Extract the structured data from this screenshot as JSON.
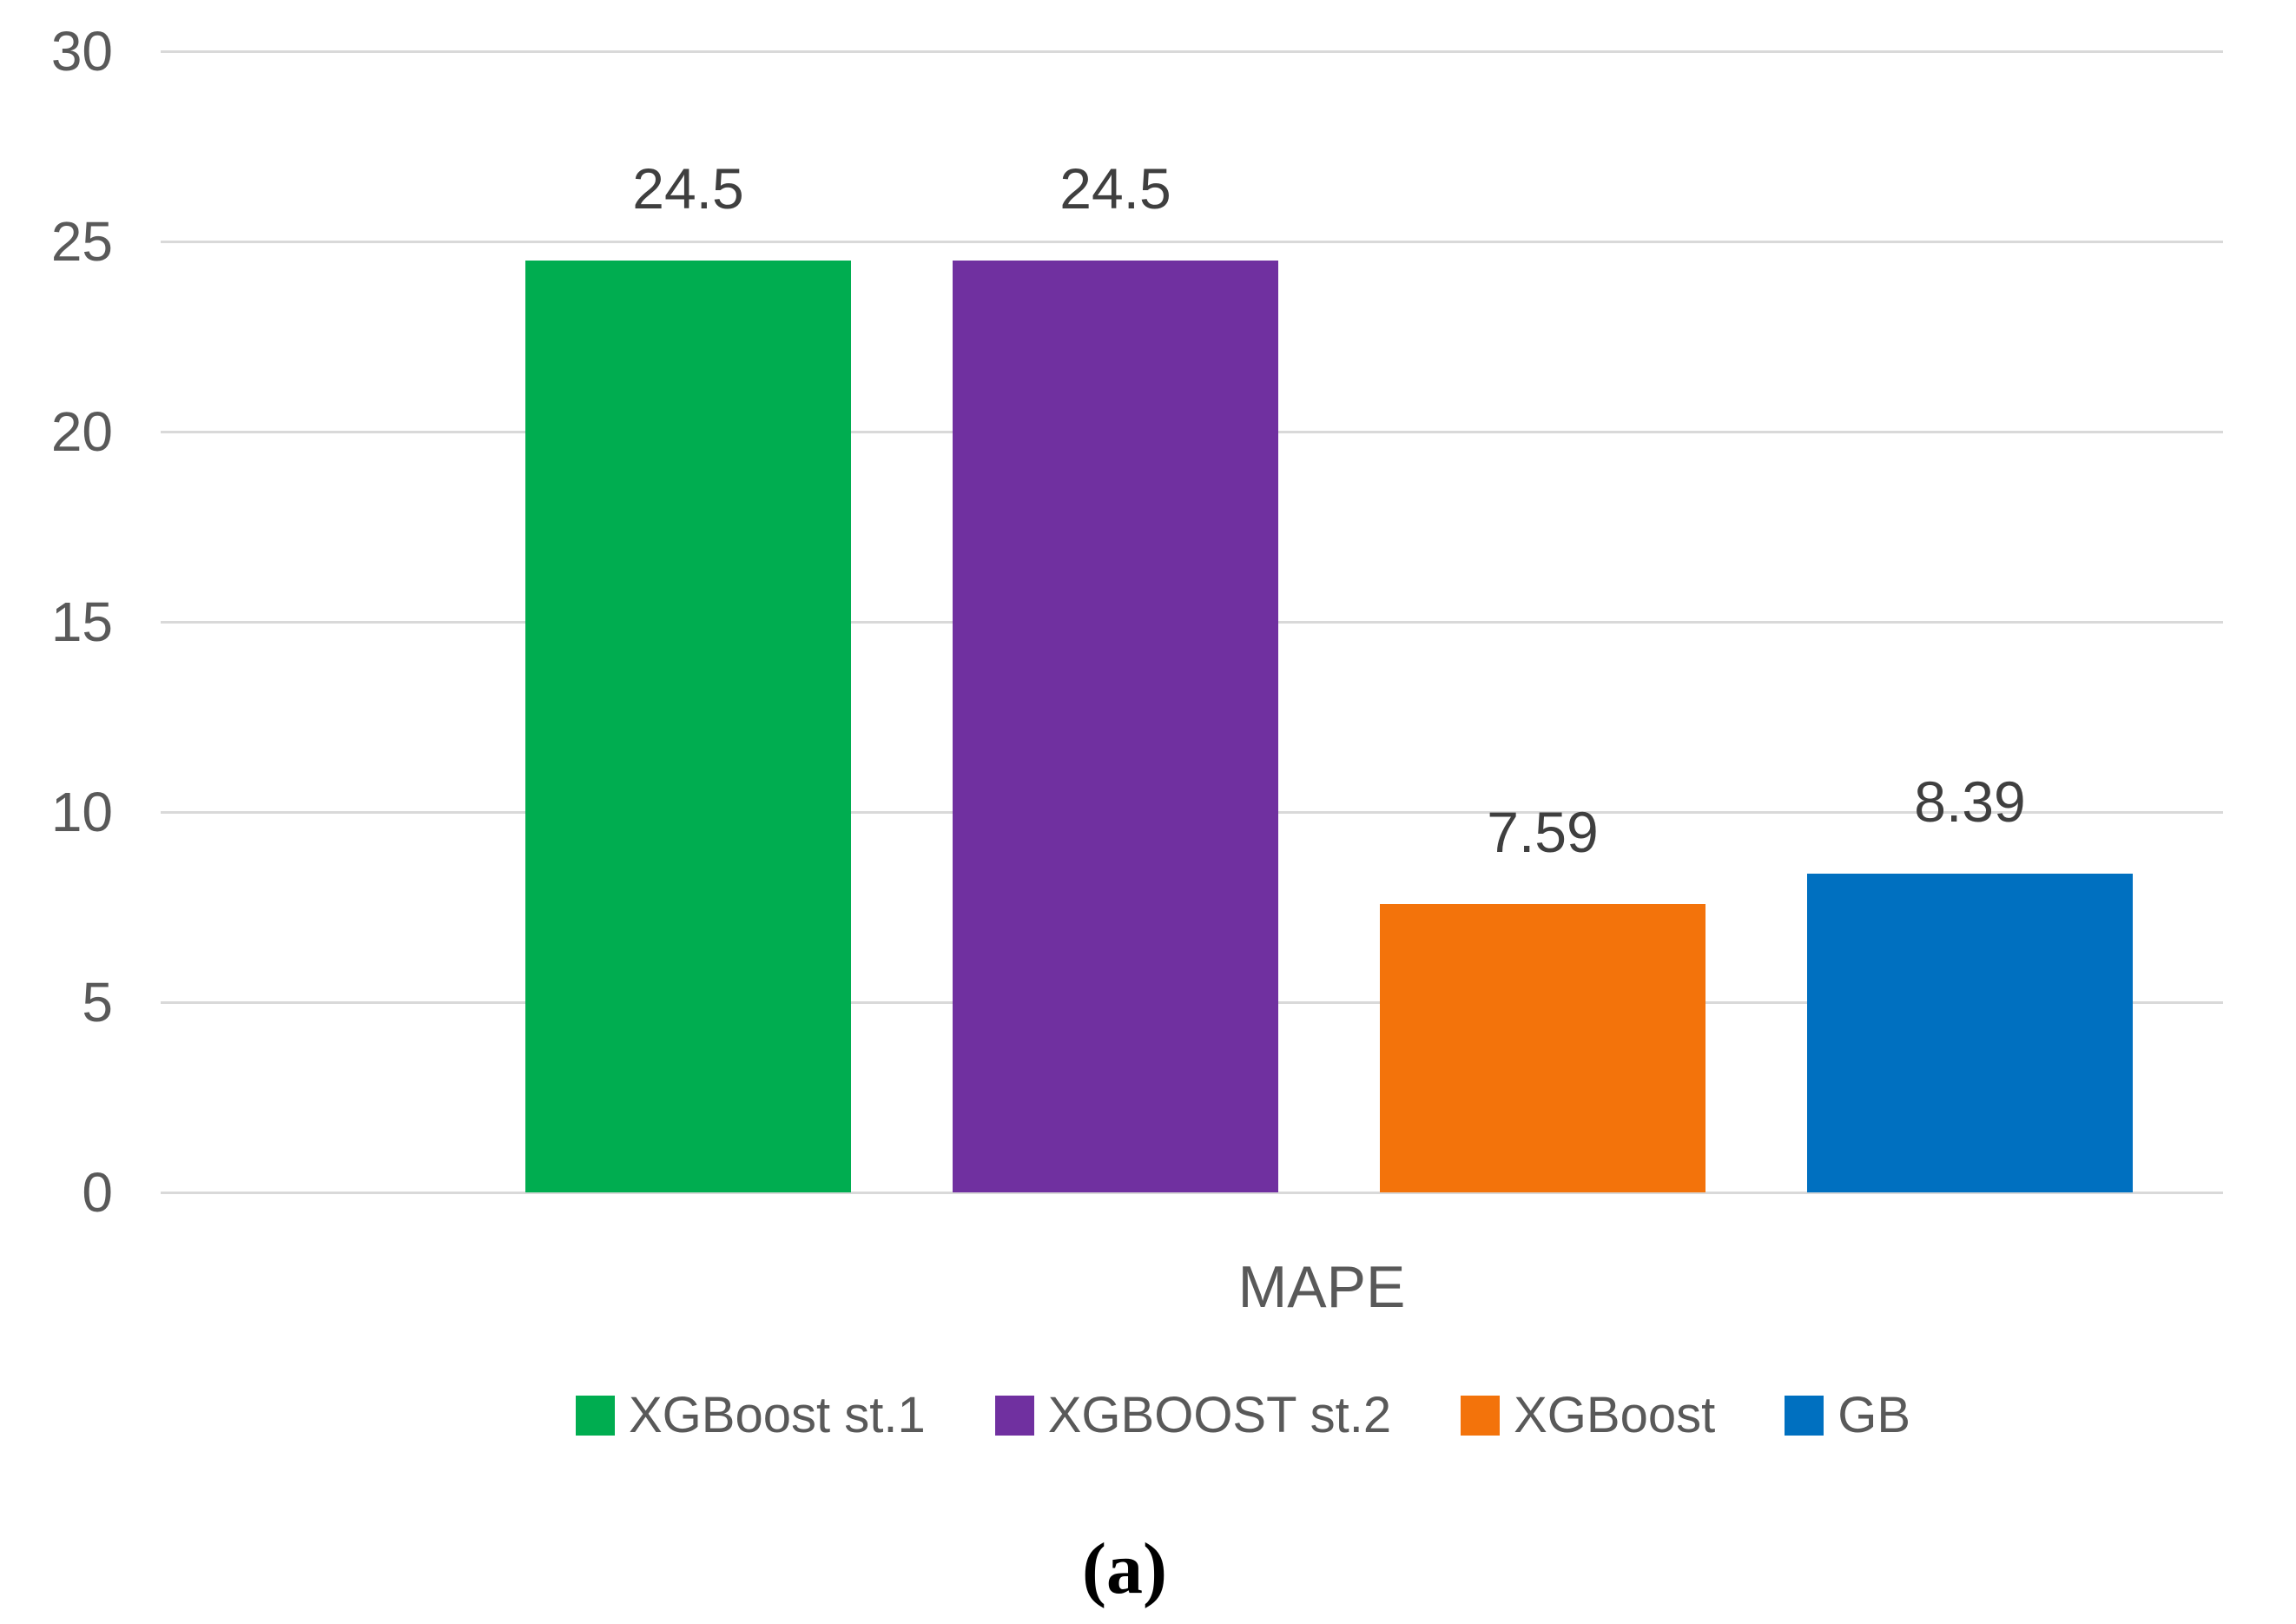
{
  "figure": {
    "caption": "(a)"
  },
  "chart_data": {
    "type": "bar",
    "categories": [
      "MAPE"
    ],
    "series": [
      {
        "name": "XGBoost st.1",
        "values": [
          24.5
        ],
        "data_label": "24.5",
        "color": "#00AD50"
      },
      {
        "name": "XGBOOST st.2",
        "values": [
          24.5
        ],
        "data_label": "24.5",
        "color": "#7030A0"
      },
      {
        "name": "XGBoost",
        "values": [
          7.59
        ],
        "data_label": "7.59",
        "color": "#F3730B"
      },
      {
        "name": "GB",
        "values": [
          8.39
        ],
        "data_label": "8.39",
        "color": "#0070C0"
      }
    ],
    "title": "",
    "xlabel": "MAPE",
    "ylabel": "",
    "ylim": [
      0,
      30
    ],
    "yticks": [
      0,
      5,
      10,
      15,
      20,
      25,
      30
    ],
    "grid": true,
    "gridline_color": "#D9D9D9",
    "tick_label_color": "#595959",
    "data_label_color": "#3F3F3F",
    "legend_position": "bottom"
  }
}
